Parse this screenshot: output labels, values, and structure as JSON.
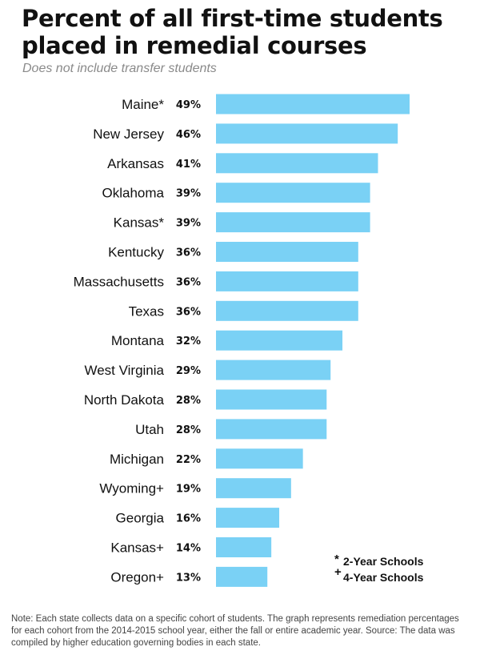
{
  "chart_data": {
    "type": "bar",
    "orientation": "horizontal",
    "title": "Percent of all first-time students placed in remedial courses",
    "subtitle": "Does not include transfer students",
    "categories": [
      "Maine*",
      "New Jersey",
      "Arkansas",
      "Oklahoma",
      "Kansas*",
      "Kentucky",
      "Massachusetts",
      "Texas",
      "Montana",
      "West Virginia",
      "North Dakota",
      "Utah",
      "Michigan",
      "Wyoming+",
      "Georgia",
      "Kansas+",
      "Oregon+"
    ],
    "values": [
      49,
      46,
      41,
      39,
      39,
      36,
      36,
      36,
      32,
      29,
      28,
      28,
      22,
      19,
      16,
      14,
      13
    ],
    "value_labels": [
      "49%",
      "46%",
      "41%",
      "39%",
      "39%",
      "36%",
      "36%",
      "36%",
      "32%",
      "29%",
      "28%",
      "28%",
      "22%",
      "19%",
      "16%",
      "14%",
      "13%"
    ],
    "xlim": [
      0,
      49
    ],
    "bar_color": "#7ad1f5",
    "legend": [
      {
        "symbol": "*",
        "label": "2-Year Schools"
      },
      {
        "symbol": "+",
        "label": "4-Year Schools"
      }
    ]
  },
  "note": "Note: Each state collects data on a specific cohort of students. The graph represents remediation percentages for each cohort from the 2014-2015 school year, either the fall or entire academic year. Source: The data was compiled by higher education governing bodies in each state."
}
